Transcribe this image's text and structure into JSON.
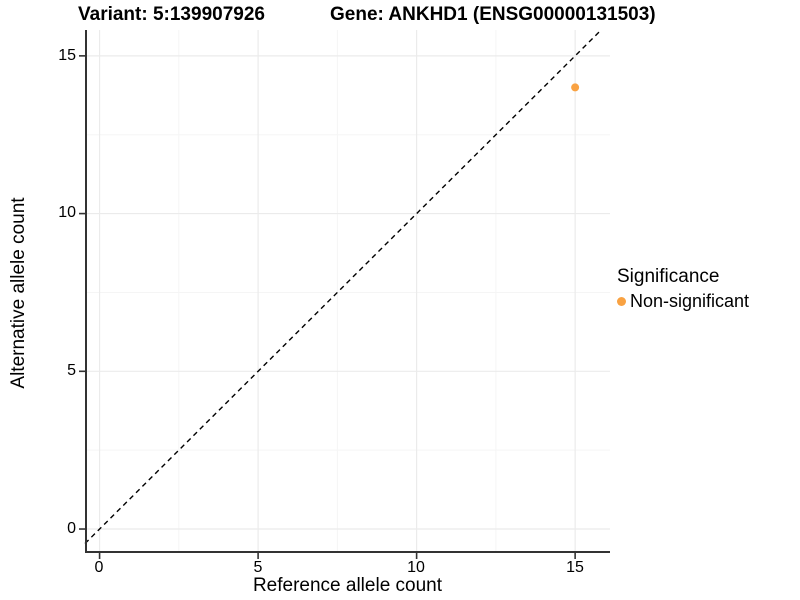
{
  "header": {
    "variant_title": "Variant: 5:139907926",
    "gene_title": "Gene: ANKHD1 (ENSG00000131503)"
  },
  "chart_data": {
    "type": "scatter",
    "title": "Variant: 5:139907926 — Gene: ANKHD1 (ENSG00000131503)",
    "xlabel": "Reference allele count",
    "ylabel": "Alternative allele count",
    "xlim": [
      -0.46,
      16.1
    ],
    "ylim": [
      -0.76,
      15.82
    ],
    "x_ticks": [
      0,
      5,
      10,
      15
    ],
    "y_ticks": [
      0,
      5,
      10,
      15
    ],
    "x_tick_labels": [
      "0",
      "5",
      "10",
      "15"
    ],
    "y_tick_labels": [
      "0",
      "5",
      "10",
      "15"
    ],
    "x_minor_ticks": [
      2.5,
      7.5,
      12.5
    ],
    "y_minor_ticks": [
      2.5,
      7.5,
      12.5
    ],
    "grid": true,
    "series": [
      {
        "name": "Non-significant",
        "color": "#F9A242",
        "points": [
          {
            "x": 15,
            "y": 14
          }
        ]
      }
    ],
    "reference_line": {
      "kind": "identity y = x",
      "slope": 1,
      "intercept": 0,
      "linestyle": "dashed",
      "color": "#000000"
    },
    "legend": {
      "title": "Significance",
      "position": "right",
      "items": [
        {
          "label": "Non-significant",
          "color": "#F9A242",
          "marker": "dot"
        }
      ]
    },
    "colors": {
      "background": "#FFFFFF",
      "axis_line": "#333333",
      "grid_major": "#EBEBEB",
      "grid_minor": "#F5F5F5",
      "text": "#000000"
    }
  }
}
